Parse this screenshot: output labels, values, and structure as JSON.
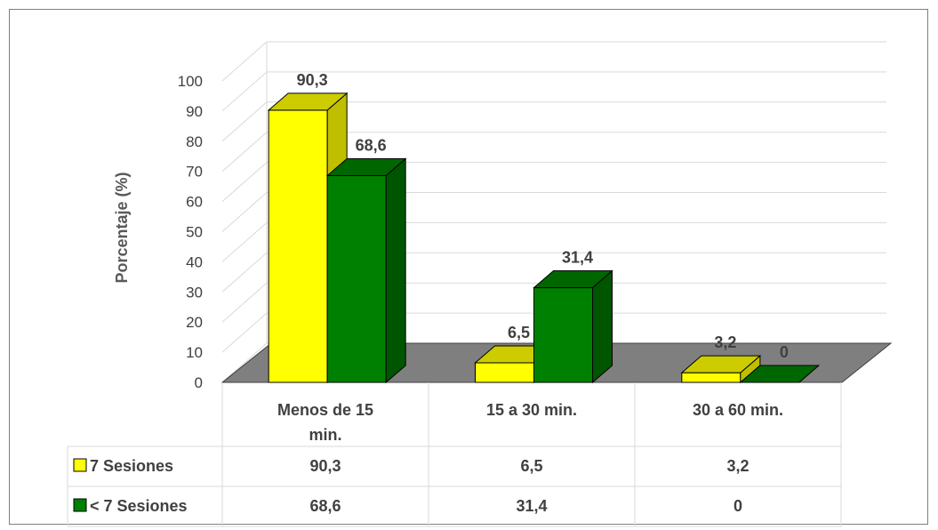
{
  "chart_data": {
    "type": "bar",
    "title": "",
    "xlabel": "",
    "ylabel": "Porcentaje (%)",
    "ylim": [
      0,
      100
    ],
    "yticks": [
      "0",
      "10",
      "20",
      "30",
      "40",
      "50",
      "60",
      "70",
      "80",
      "90",
      "100"
    ],
    "categories": [
      "Menos de 15 min.",
      "15 a 30 min.",
      "30 a 60 min."
    ],
    "series": [
      {
        "name": "7 Sesiones",
        "values": [
          90.3,
          6.5,
          3.2
        ],
        "labels": [
          "90,3",
          "6,5",
          "3,2"
        ]
      },
      {
        "name": "< 7 Sesiones",
        "values": [
          68.6,
          31.4,
          0
        ],
        "labels": [
          "68,6",
          "31,4",
          "0"
        ]
      }
    ],
    "grid": true,
    "legend": "data-table-left",
    "three_d": true
  },
  "colors": {
    "series1_front": "#ffff00",
    "series1_side": "#bfbf00",
    "series1_top": "#cccc00",
    "series2_front": "#008000",
    "series2_side": "#005500",
    "series2_top": "#006600",
    "floor": "#7f7f7f",
    "grid": "#d9d9d9"
  }
}
